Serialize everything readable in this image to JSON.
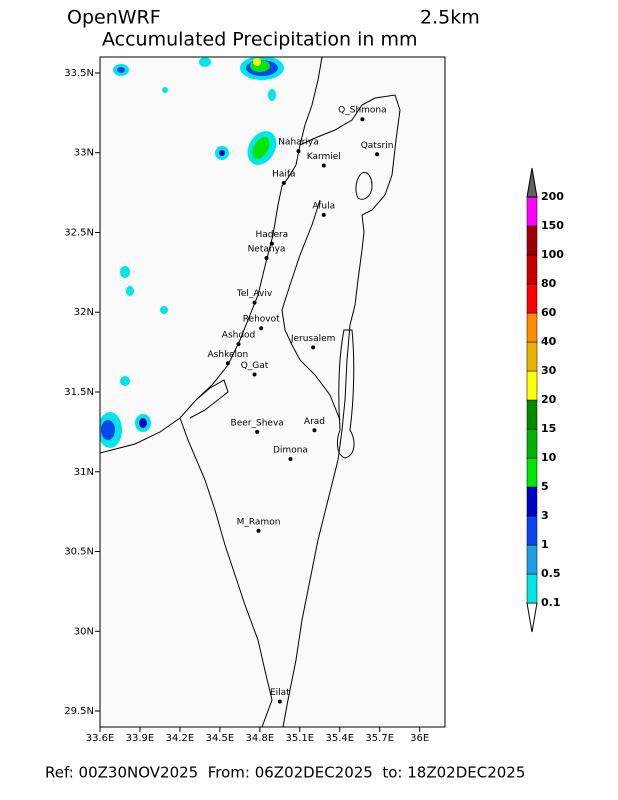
{
  "chart_data": {
    "type": "map",
    "model": "OpenWRF",
    "resolution": "2.5km",
    "title": "Accumulated Precipitation in mm",
    "footer": "Ref: 00Z30NOV2025  From: 06Z02DEC2025  to: 18Z02DEC2025",
    "xlim": [
      33.6,
      36.19
    ],
    "ylim": [
      29.4,
      33.6
    ],
    "xticks": [
      {
        "value": 33.6,
        "label": "33.6E"
      },
      {
        "value": 33.9,
        "label": "33.9E"
      },
      {
        "value": 34.2,
        "label": "34.2E"
      },
      {
        "value": 34.5,
        "label": "34.5E"
      },
      {
        "value": 34.8,
        "label": "34.8E"
      },
      {
        "value": 35.1,
        "label": "35.1E"
      },
      {
        "value": 35.4,
        "label": "35.4E"
      },
      {
        "value": 35.7,
        "label": "35.7E"
      },
      {
        "value": 36,
        "label": "36E"
      }
    ],
    "yticks": [
      {
        "value": 29.5,
        "label": "29.5N"
      },
      {
        "value": 30,
        "label": "30N"
      },
      {
        "value": 30.5,
        "label": "30.5N"
      },
      {
        "value": 31,
        "label": "31N"
      },
      {
        "value": 31.5,
        "label": "31.5N"
      },
      {
        "value": 32,
        "label": "32N"
      },
      {
        "value": 32.5,
        "label": "32.5N"
      },
      {
        "value": 33,
        "label": "33N"
      },
      {
        "value": 33.5,
        "label": "33.5N"
      }
    ],
    "cities": [
      {
        "name": "Q_Shmona",
        "lon": 35.57,
        "lat": 33.21
      },
      {
        "name": "Nahariya",
        "lon": 35.09,
        "lat": 33.01
      },
      {
        "name": "Karmiel",
        "lon": 35.28,
        "lat": 32.92
      },
      {
        "name": "Qatsrin",
        "lon": 35.68,
        "lat": 32.99
      },
      {
        "name": "Haifa",
        "lon": 34.98,
        "lat": 32.81
      },
      {
        "name": "Afula",
        "lon": 35.28,
        "lat": 32.61
      },
      {
        "name": "Hadera",
        "lon": 34.89,
        "lat": 32.43
      },
      {
        "name": "Netanya",
        "lon": 34.85,
        "lat": 32.34
      },
      {
        "name": "Tel_Aviv",
        "lon": 34.76,
        "lat": 32.06
      },
      {
        "name": "Rehovot",
        "lon": 34.81,
        "lat": 31.9
      },
      {
        "name": "Ashdod",
        "lon": 34.64,
        "lat": 31.8
      },
      {
        "name": "Jerusalem",
        "lon": 35.2,
        "lat": 31.78
      },
      {
        "name": "Ashkelon",
        "lon": 34.56,
        "lat": 31.68
      },
      {
        "name": "Q_Gat",
        "lon": 34.76,
        "lat": 31.61
      },
      {
        "name": "Beer_Sheva",
        "lon": 34.78,
        "lat": 31.25
      },
      {
        "name": "Arad",
        "lon": 35.21,
        "lat": 31.26
      },
      {
        "name": "Dimona",
        "lon": 35.03,
        "lat": 31.08
      },
      {
        "name": "M_Ramon",
        "lon": 34.79,
        "lat": 30.63
      },
      {
        "name": "Eilat",
        "lon": 34.95,
        "lat": 29.56
      }
    ],
    "colorbar": {
      "levels": [
        0.1,
        0.5,
        1,
        3,
        5,
        10,
        15,
        20,
        30,
        40,
        60,
        80,
        100,
        150,
        200
      ],
      "colors": [
        "#ffffff",
        "#00e6e6",
        "#1ea0e6",
        "#0a46f0",
        "#0000c8",
        "#00e600",
        "#00b400",
        "#008c00",
        "#ffff00",
        "#e6b400",
        "#ff8c00",
        "#ff0000",
        "#c80000",
        "#a00000",
        "#ff00ff",
        "#9650dc",
        "#606060"
      ]
    }
  }
}
